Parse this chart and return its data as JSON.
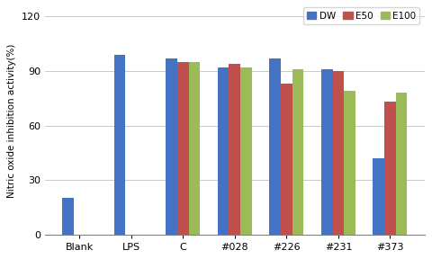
{
  "categories": [
    "Blank",
    "LPS",
    "C",
    "#028",
    "#226",
    "#231",
    "#373"
  ],
  "series": {
    "DW": [
      20,
      99,
      97,
      92,
      97,
      91,
      42
    ],
    "E50": [
      null,
      null,
      95,
      94,
      83,
      90,
      73
    ],
    "E100": [
      null,
      null,
      95,
      92,
      91,
      79,
      78
    ]
  },
  "colors": {
    "DW": "#4472C4",
    "E50": "#C0504D",
    "E100": "#9BBB59"
  },
  "ylabel": "Nitric oxide inhibition activity(%)",
  "ylim": [
    0,
    125
  ],
  "yticks": [
    0,
    30,
    60,
    90,
    120
  ],
  "legend_labels": [
    "DW",
    "E50",
    "E100"
  ],
  "bar_width": 0.22,
  "background_color": "#ffffff"
}
